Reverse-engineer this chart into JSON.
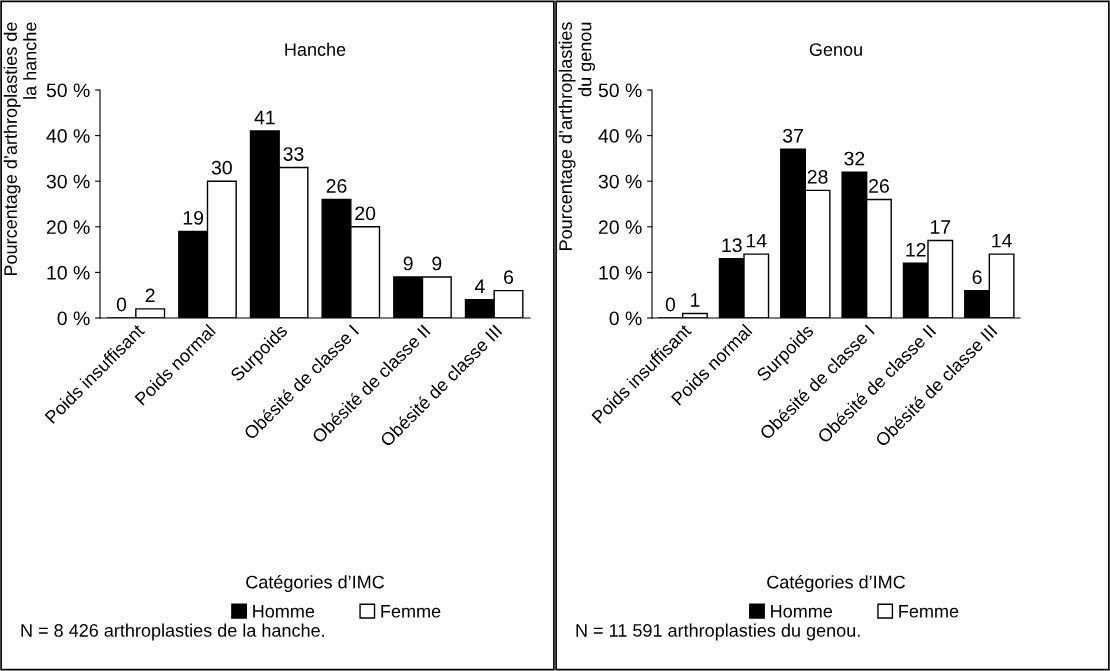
{
  "chart_data": [
    {
      "type": "bar",
      "title": "Hanche",
      "xlabel": "Catégories d’IMC",
      "ylabel": "Pourcentage d’arthroplasties de\nla hanche",
      "categories": [
        "Poids insuffisant",
        "Poids normal",
        "Surpoids",
        "Obésité de classe I",
        "Obésité de classe II",
        "Obésité de classe III"
      ],
      "series": [
        {
          "name": "Homme",
          "color": "#000000",
          "values": [
            0,
            19,
            41,
            26,
            9,
            4
          ]
        },
        {
          "name": "Femme",
          "color": "#ffffff",
          "values": [
            2,
            30,
            33,
            20,
            9,
            6
          ]
        }
      ],
      "ylim": [
        0,
        50
      ],
      "yticks": [
        {
          "value": 0,
          "label": "0 %"
        },
        {
          "value": 10,
          "label": "10 %"
        },
        {
          "value": 20,
          "label": "20 %"
        },
        {
          "value": 30,
          "label": "30 %"
        },
        {
          "value": 40,
          "label": "40 %"
        },
        {
          "value": 50,
          "label": "50 %"
        }
      ],
      "data_labels": true,
      "legend": "bottom",
      "grid": false,
      "annotations": [
        "N = 8 426 arthroplasties de la hanche."
      ]
    },
    {
      "type": "bar",
      "title": "Genou",
      "xlabel": "Catégories d’IMC",
      "ylabel": "Pourcentage d’arthroplasties\ndu genou",
      "categories": [
        "Poids insuffisant",
        "Poids normal",
        "Surpoids",
        "Obésité de classe I",
        "Obésité de classe II",
        "Obésité de classe III"
      ],
      "series": [
        {
          "name": "Homme",
          "color": "#000000",
          "values": [
            0,
            13,
            37,
            32,
            12,
            6
          ]
        },
        {
          "name": "Femme",
          "color": "#ffffff",
          "values": [
            1,
            14,
            28,
            26,
            17,
            14
          ]
        }
      ],
      "ylim": [
        0,
        50
      ],
      "yticks": [
        {
          "value": 0,
          "label": "0 %"
        },
        {
          "value": 10,
          "label": "10 %"
        },
        {
          "value": 20,
          "label": "20 %"
        },
        {
          "value": 30,
          "label": "30 %"
        },
        {
          "value": 40,
          "label": "40 %"
        },
        {
          "value": 50,
          "label": "50 %"
        }
      ],
      "data_labels": true,
      "legend": "bottom",
      "grid": false,
      "annotations": [
        "N = 11 591 arthroplasties du genou."
      ]
    }
  ]
}
